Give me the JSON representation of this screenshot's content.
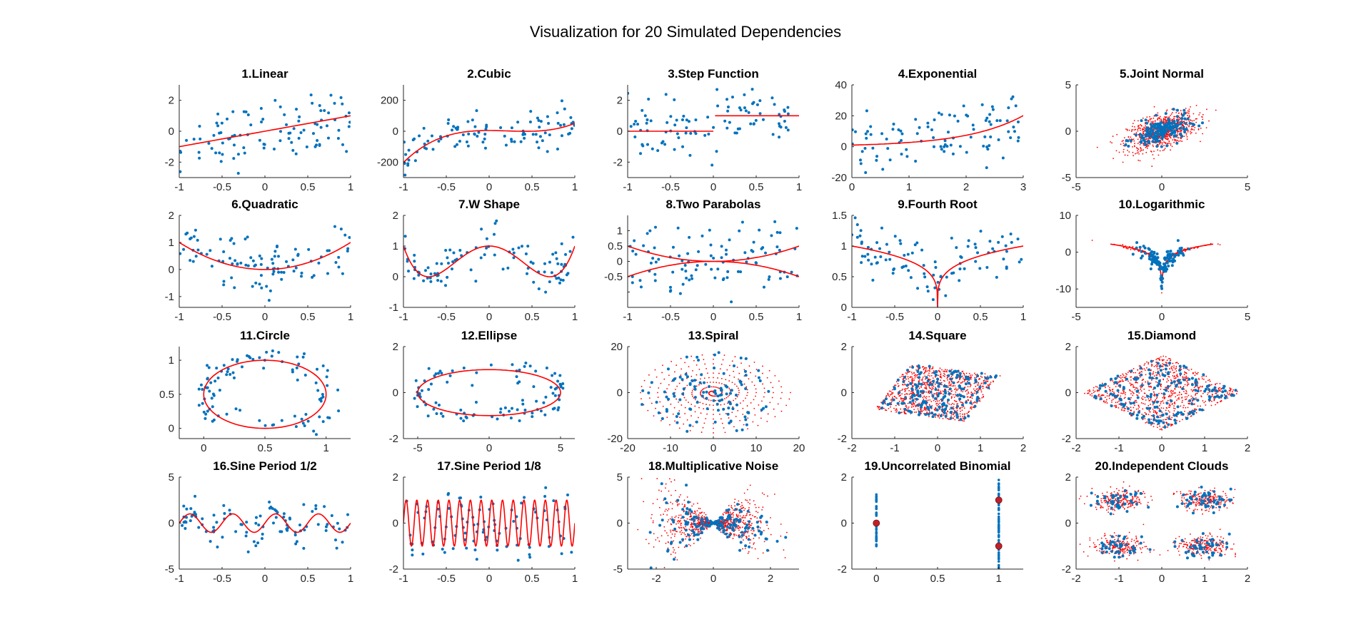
{
  "figure": {
    "title": "Visualization for 20 Simulated Dependencies",
    "colors": {
      "noisy": "#0072BD",
      "noiseless": "#FF0000",
      "axis": "#262626"
    }
  },
  "chart_data": [
    {
      "id": 1,
      "type": "scatter",
      "title": "1.Linear",
      "xlim": [
        -1,
        1
      ],
      "ylim": [
        -3,
        3
      ],
      "xticks": [
        -1,
        -0.5,
        0,
        0.5,
        1
      ],
      "xtick_labels": [
        "-1",
        "-0.5",
        "0",
        "0.5",
        "1"
      ],
      "yticks": [
        -2,
        0,
        2
      ],
      "ytick_labels": [
        "-2",
        "0",
        "2"
      ],
      "series": [
        {
          "style": "scatter",
          "color": "#0072BD"
        },
        {
          "style": "line",
          "color": "#FF0000"
        }
      ],
      "function": "y = x"
    },
    {
      "id": 2,
      "type": "scatter",
      "title": "2.Cubic",
      "xlim": [
        -1,
        1
      ],
      "ylim": [
        -300,
        300
      ],
      "xticks": [
        -1,
        -0.5,
        0,
        0.5,
        1
      ],
      "xtick_labels": [
        "-1",
        "-0.5",
        "0",
        "0.5",
        "1"
      ],
      "yticks": [
        -200,
        0,
        200
      ],
      "ytick_labels": [
        "-200",
        "0",
        "200"
      ],
      "series": [
        {
          "style": "scatter",
          "color": "#0072BD"
        },
        {
          "style": "line",
          "color": "#FF0000"
        }
      ],
      "function": "y = 128(x-1/3)^3 + 48(x-1/3)^2 - 12(x-1/3)"
    },
    {
      "id": 3,
      "type": "scatter",
      "title": "3.Step Function",
      "xlim": [
        -1,
        1
      ],
      "ylim": [
        -3,
        3
      ],
      "xticks": [
        -1,
        -0.5,
        0,
        0.5,
        1
      ],
      "xtick_labels": [
        "-1",
        "-0.5",
        "0",
        "0.5",
        "1"
      ],
      "yticks": [
        -2,
        0,
        2
      ],
      "ytick_labels": [
        "-2",
        "0",
        "2"
      ],
      "series": [
        {
          "style": "scatter",
          "color": "#0072BD"
        },
        {
          "style": "line",
          "color": "#FF0000"
        }
      ],
      "function": "y = 1 if x > 0 else 0"
    },
    {
      "id": 4,
      "type": "scatter",
      "title": "4.Exponential",
      "xlim": [
        0,
        3
      ],
      "ylim": [
        -20,
        40
      ],
      "xticks": [
        0,
        1,
        2,
        3
      ],
      "xtick_labels": [
        "0",
        "1",
        "2",
        "3"
      ],
      "yticks": [
        -20,
        0,
        20,
        40
      ],
      "ytick_labels": [
        "-20",
        "0",
        "20",
        "40"
      ],
      "series": [
        {
          "style": "scatter",
          "color": "#0072BD"
        },
        {
          "style": "line",
          "color": "#FF0000"
        }
      ],
      "function": "y = exp(x)"
    },
    {
      "id": 5,
      "type": "scatter",
      "title": "5.Joint Normal",
      "xlim": [
        -5,
        5
      ],
      "ylim": [
        -5,
        5
      ],
      "xticks": [
        -5,
        0,
        5
      ],
      "xtick_labels": [
        "-5",
        "0",
        "5"
      ],
      "yticks": [
        -5,
        0,
        5
      ],
      "ytick_labels": [
        "-5",
        "0",
        "5"
      ],
      "series": [
        {
          "style": "cloud",
          "color": "#FF0000"
        },
        {
          "style": "scatter",
          "color": "#0072BD"
        }
      ],
      "function": "bivariate normal, correlation 0.5"
    },
    {
      "id": 6,
      "type": "scatter",
      "title": "6.Quadratic",
      "xlim": [
        -1,
        1
      ],
      "ylim": [
        -1.4,
        2
      ],
      "xticks": [
        -1,
        -0.5,
        0,
        0.5,
        1
      ],
      "xtick_labels": [
        "-1",
        "-0.5",
        "0",
        "0.5",
        "1"
      ],
      "yticks": [
        -1,
        0,
        1,
        2
      ],
      "ytick_labels": [
        "-1",
        "0",
        "1",
        "2"
      ],
      "series": [
        {
          "style": "scatter",
          "color": "#0072BD"
        },
        {
          "style": "line",
          "color": "#FF0000"
        }
      ],
      "function": "y = x^2"
    },
    {
      "id": 7,
      "type": "scatter",
      "title": "7.W Shape",
      "xlim": [
        -1,
        1
      ],
      "ylim": [
        -1,
        2
      ],
      "xticks": [
        -1,
        -0.5,
        0,
        0.5,
        1
      ],
      "xtick_labels": [
        "-1",
        "-0.5",
        "0",
        "0.5",
        "1"
      ],
      "yticks": [
        -1,
        0,
        1,
        2
      ],
      "ytick_labels": [
        "-1",
        "0",
        "1",
        "2"
      ],
      "series": [
        {
          "style": "scatter",
          "color": "#0072BD"
        },
        {
          "style": "line",
          "color": "#FF0000"
        }
      ],
      "function": "y = 4((x^2 - 1/2)^2 + u/500)"
    },
    {
      "id": 8,
      "type": "scatter",
      "title": "8.Two Parabolas",
      "xlim": [
        -1,
        1
      ],
      "ylim": [
        -1.5,
        1.5
      ],
      "xticks": [
        -1,
        -0.5,
        0,
        0.5,
        1
      ],
      "xtick_labels": [
        "-1",
        "-0.5",
        "0",
        "0.5",
        "1"
      ],
      "yticks": [
        -1,
        -0.5,
        0,
        0.5,
        1
      ],
      "ytick_labels": [
        "",
        "-0.5",
        "0",
        "0.5",
        "1"
      ],
      "series": [
        {
          "style": "scatter",
          "color": "#0072BD"
        },
        {
          "style": "line",
          "color": "#FF0000"
        }
      ],
      "function": "y = ±x^2 / 2"
    },
    {
      "id": 9,
      "type": "scatter",
      "title": "9.Fourth Root",
      "xlim": [
        -1,
        1
      ],
      "ylim": [
        0,
        1.5
      ],
      "xticks": [
        -1,
        -0.5,
        0,
        0.5,
        1
      ],
      "xtick_labels": [
        "-1",
        "-0.5",
        "0",
        "0.5",
        "1"
      ],
      "yticks": [
        0,
        0.5,
        1,
        1.5
      ],
      "ytick_labels": [
        "0",
        "0.5",
        "1",
        "1.5"
      ],
      "series": [
        {
          "style": "scatter",
          "color": "#0072BD"
        },
        {
          "style": "line",
          "color": "#FF0000"
        }
      ],
      "function": "y = |x|^(1/4)"
    },
    {
      "id": 10,
      "type": "scatter",
      "title": "10.Logarithmic",
      "xlim": [
        -5,
        5
      ],
      "ylim": [
        -15,
        10
      ],
      "xticks": [
        -5,
        0,
        5
      ],
      "xtick_labels": [
        "-5",
        "0",
        "5"
      ],
      "yticks": [
        -10,
        0,
        10
      ],
      "ytick_labels": [
        "-10",
        "0",
        "10"
      ],
      "series": [
        {
          "style": "cloud",
          "color": "#FF0000"
        },
        {
          "style": "scatter",
          "color": "#0072BD"
        },
        {
          "style": "line",
          "color": "#FF0000"
        }
      ],
      "function": "y = log(x^2)"
    },
    {
      "id": 11,
      "type": "scatter",
      "title": "11.Circle",
      "xlim": [
        -0.2,
        1.2
      ],
      "ylim": [
        -0.15,
        1.2
      ],
      "xticks": [
        0,
        0.5,
        1
      ],
      "xtick_labels": [
        "0",
        "0.5",
        "1"
      ],
      "yticks": [
        0,
        0.5,
        1
      ],
      "ytick_labels": [
        "0",
        "0.5",
        "1"
      ],
      "series": [
        {
          "style": "scatter",
          "color": "#0072BD"
        },
        {
          "style": "line",
          "color": "#FF0000"
        }
      ],
      "function": "circle centred (0.5, 0.5), radius 0.5"
    },
    {
      "id": 12,
      "type": "scatter",
      "title": "12.Ellipse",
      "xlim": [
        -6,
        6
      ],
      "ylim": [
        -2,
        2
      ],
      "xticks": [
        -5,
        0,
        5
      ],
      "xtick_labels": [
        "-5",
        "0",
        "5"
      ],
      "yticks": [
        -2,
        0,
        2
      ],
      "ytick_labels": [
        "-2",
        "0",
        "2"
      ],
      "series": [
        {
          "style": "scatter",
          "color": "#0072BD"
        },
        {
          "style": "line",
          "color": "#FF0000"
        }
      ],
      "function": "ellipse, semi-axes 5 and 1"
    },
    {
      "id": 13,
      "type": "scatter",
      "title": "13.Spiral",
      "xlim": [
        -20,
        20
      ],
      "ylim": [
        -20,
        20
      ],
      "xticks": [
        -20,
        -10,
        0,
        10,
        20
      ],
      "xtick_labels": [
        "-20",
        "-10",
        "0",
        "10",
        "20"
      ],
      "yticks": [
        -20,
        0,
        20
      ],
      "ytick_labels": [
        "-20",
        "0",
        "20"
      ],
      "series": [
        {
          "style": "line",
          "color": "#FF0000"
        },
        {
          "style": "scatter",
          "color": "#0072BD"
        }
      ],
      "function": "spiral r = u, angle = π·u, u in [0, 18]"
    },
    {
      "id": 14,
      "type": "scatter",
      "title": "14.Square",
      "xlim": [
        -2,
        2
      ],
      "ylim": [
        -2,
        2
      ],
      "xticks": [
        -2,
        -1,
        0,
        1,
        2
      ],
      "xtick_labels": [
        "-2",
        "-1",
        "0",
        "1",
        "2"
      ],
      "yticks": [
        -2,
        0,
        2
      ],
      "ytick_labels": [
        "-2",
        "0",
        "2"
      ],
      "series": [
        {
          "style": "cloud",
          "color": "#FF0000"
        },
        {
          "style": "scatter",
          "color": "#0072BD"
        }
      ],
      "function": "uniform square"
    },
    {
      "id": 15,
      "type": "scatter",
      "title": "15.Diamond",
      "xlim": [
        -2,
        2
      ],
      "ylim": [
        -2,
        2
      ],
      "xticks": [
        -2,
        -1,
        0,
        1,
        2
      ],
      "xtick_labels": [
        "-2",
        "-1",
        "0",
        "1",
        "2"
      ],
      "yticks": [
        -2,
        0,
        2
      ],
      "ytick_labels": [
        "-2",
        "0",
        "2"
      ],
      "series": [
        {
          "style": "cloud",
          "color": "#FF0000"
        },
        {
          "style": "scatter",
          "color": "#0072BD"
        }
      ],
      "function": "uniform diamond"
    },
    {
      "id": 16,
      "type": "scatter",
      "title": "16.Sine Period 1/2",
      "xlim": [
        -1,
        1
      ],
      "ylim": [
        -5,
        5
      ],
      "xticks": [
        -1,
        -0.5,
        0,
        0.5,
        1
      ],
      "xtick_labels": [
        "-1",
        "-0.5",
        "0",
        "0.5",
        "1"
      ],
      "yticks": [
        -5,
        0,
        5
      ],
      "ytick_labels": [
        "-5",
        "0",
        "5"
      ],
      "series": [
        {
          "style": "scatter",
          "color": "#0072BD"
        },
        {
          "style": "line",
          "color": "#FF0000"
        }
      ],
      "function": "y = sin(4πx)"
    },
    {
      "id": 17,
      "type": "scatter",
      "title": "17.Sine Period 1/8",
      "xlim": [
        -1,
        1
      ],
      "ylim": [
        -2,
        2
      ],
      "xticks": [
        -1,
        -0.5,
        0,
        0.5,
        1
      ],
      "xtick_labels": [
        "-1",
        "-0.5",
        "0",
        "0.5",
        "1"
      ],
      "yticks": [
        -2,
        0,
        2
      ],
      "ytick_labels": [
        "-2",
        "0",
        "2"
      ],
      "series": [
        {
          "style": "scatter",
          "color": "#0072BD"
        },
        {
          "style": "line",
          "color": "#FF0000"
        }
      ],
      "function": "y = sin(16πx)"
    },
    {
      "id": 18,
      "type": "scatter",
      "title": "18.Multiplicative Noise",
      "xlim": [
        -3,
        3
      ],
      "ylim": [
        -5,
        5
      ],
      "xticks": [
        -2,
        0,
        2
      ],
      "xtick_labels": [
        "-2",
        "0",
        "2"
      ],
      "yticks": [
        -5,
        0,
        5
      ],
      "ytick_labels": [
        "-5",
        "0",
        "5"
      ],
      "series": [
        {
          "style": "cloud",
          "color": "#FF0000"
        },
        {
          "style": "scatter",
          "color": "#0072BD"
        }
      ],
      "function": "y = u·x, x and u normal"
    },
    {
      "id": 19,
      "type": "scatter",
      "title": "19.Uncorrelated Binomial",
      "xlim": [
        -0.2,
        1.2
      ],
      "ylim": [
        -2,
        2
      ],
      "xticks": [
        0,
        0.5,
        1
      ],
      "xtick_labels": [
        "0",
        "0.5",
        "1"
      ],
      "yticks": [
        -2,
        0,
        2
      ],
      "ytick_labels": [
        "-2",
        "0",
        "2"
      ],
      "series": [
        {
          "style": "scatter",
          "color": "#0072BD"
        },
        {
          "style": "points",
          "color": "#FF0000"
        }
      ],
      "points": [
        [
          0,
          0
        ],
        [
          1,
          1
        ],
        [
          1,
          -1
        ]
      ]
    },
    {
      "id": 20,
      "type": "scatter",
      "title": "20.Independent Clouds",
      "xlim": [
        -2,
        2
      ],
      "ylim": [
        -2,
        2
      ],
      "xticks": [
        -2,
        -1,
        0,
        1,
        2
      ],
      "xtick_labels": [
        "-2",
        "-1",
        "0",
        "1",
        "2"
      ],
      "yticks": [
        -2,
        0,
        2
      ],
      "ytick_labels": [
        "-2",
        "0",
        "2"
      ],
      "series": [
        {
          "style": "cloud",
          "color": "#FF0000"
        },
        {
          "style": "scatter",
          "color": "#0072BD"
        }
      ],
      "function": "four independent clouds centred at (±1, ±1)"
    }
  ]
}
